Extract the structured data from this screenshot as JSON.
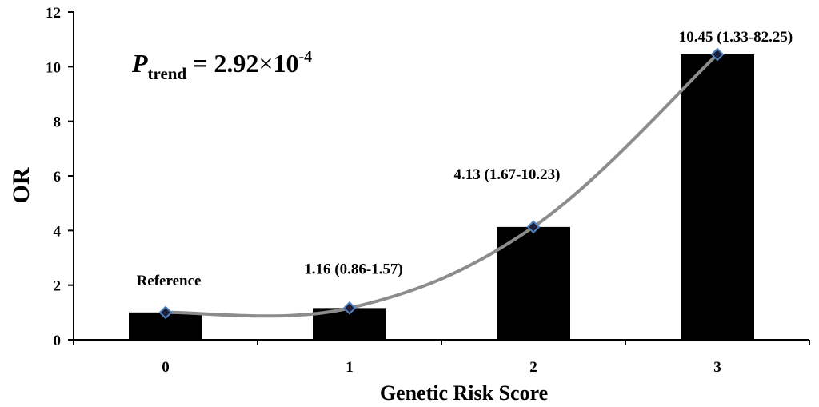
{
  "chart_data": {
    "type": "bar",
    "categories": [
      "0",
      "1",
      "2",
      "3"
    ],
    "values": [
      1.0,
      1.16,
      4.13,
      10.45
    ],
    "line_overlay": true,
    "data_labels": [
      "Reference",
      "1.16 (0.86-1.57)",
      "4.13 (1.67-10.23)",
      "10.45 (1.33-82.25)"
    ],
    "xlabel": "Genetic Risk Score",
    "ylabel": "OR",
    "ylim": [
      0,
      12
    ],
    "yticks": [
      "0",
      "2",
      "4",
      "6",
      "8",
      "10",
      "12"
    ],
    "grid": false,
    "legend": "none",
    "annotation": {
      "p": "P",
      "subscript": "trend",
      "equals": " = 2.92",
      "times": "×",
      "ten": "10",
      "exponent": "-4"
    },
    "colors": {
      "bar": "#000000",
      "line": "#8c8c8c",
      "marker_fill": "#1f1f3a",
      "marker_stroke": "#4f81bd"
    }
  }
}
